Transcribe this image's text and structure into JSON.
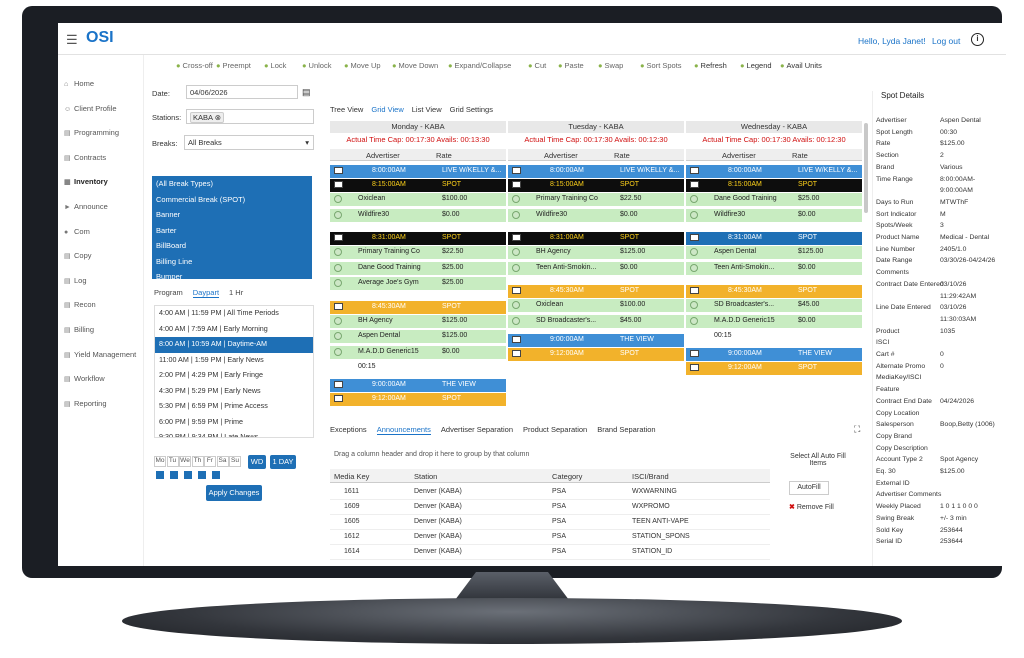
{
  "app": {
    "logo": "OSI",
    "hello": "Hello, Lyda Janet!",
    "logout": "Log out",
    "info": "i"
  },
  "sidebar": [
    "Home",
    "Client Profile",
    "Programming",
    "Contracts",
    "Inventory",
    "Announce",
    "Com",
    "Copy",
    "Log",
    "Recon",
    "Billing",
    "Yield Management",
    "Workflow",
    "Reporting"
  ],
  "toolbar": [
    "Cross-off",
    "Preempt",
    "Lock",
    "Unlock",
    "Move Up",
    "Move Down",
    "Expand/Collapse",
    "Cut",
    "Paste",
    "Swap",
    "Sort Spots",
    "Refresh",
    "Legend",
    "Avail Units"
  ],
  "filters": {
    "date_label": "Date:",
    "date": "04/06/2026",
    "stations_label": "Stations:",
    "station": "KABA",
    "breaks_label": "Breaks:",
    "breaks": "All Breaks"
  },
  "break_types": [
    "(All Break Types)",
    "Commercial Break (SPOT)",
    "Banner",
    "Barter",
    "BillBoard",
    "Billing Line",
    "Bumper"
  ],
  "subtabs": [
    "Program",
    "Daypart",
    "1 Hr"
  ],
  "dayparts": [
    "4:00 AM | 11:59 PM | All Time Periods",
    "4:00 AM | 7:59 AM | Early Morning",
    "8:00 AM | 10:59 AM | Daytime-AM",
    "11:00 AM | 1:59 PM | Early News",
    "2:00 PM | 4:29 PM | Early Fringe",
    "4:30 PM | 5:29 PM | Early News",
    "5:30 PM | 6:59 PM | Prime Access",
    "6:00 PM | 9:59 PM | Prime",
    "9:30 PM | 9:34 PM | Late News"
  ],
  "weekdays": [
    "Mo",
    "Tu",
    "We",
    "Th",
    "Fr",
    "Sa",
    "Su"
  ],
  "buttons": {
    "wd": "WD",
    "oneday": "1 DAY",
    "apply": "Apply Changes",
    "autofill": "AutoFill",
    "removefill": "Remove Fill",
    "select_all": "Select All Auto Fill Items"
  },
  "gridtabs": [
    "Tree View",
    "Grid View",
    "List View",
    "Grid Settings"
  ],
  "grid_headers": {
    "advertiser": "Advertiser",
    "rate": "Rate"
  },
  "days": [
    {
      "title": "Monday - KABA",
      "cap": "Actual Time Cap: 00:17:30 Avails: 00:13:30"
    },
    {
      "title": "Tuesday - KABA",
      "cap": "Actual Time Cap: 00:17:30 Avails: 00:12:30"
    },
    {
      "title": "Wednesday - KABA",
      "cap": "Actual Time Cap: 00:17:30 Avails: 00:12:30"
    }
  ],
  "monday": [
    {
      "t": "blue",
      "a": "8:00:00AM",
      "b": "LIVE W/KELLY &..."
    },
    {
      "t": "black",
      "a": "8:15:00AM",
      "b": "SPOT"
    },
    {
      "t": "green",
      "a": "Oxiclean",
      "b": "$100.00"
    },
    {
      "t": "green",
      "a": "Wildfire30",
      "b": "$0.00"
    },
    {
      "t": "black",
      "a": "8:31:00AM",
      "b": "SPOT"
    },
    {
      "t": "green",
      "a": "Primary Training Co",
      "b": "$22.50"
    },
    {
      "t": "green",
      "a": "Dane Good Training",
      "b": "$25.00"
    },
    {
      "t": "green",
      "a": "Average Joe's Gym",
      "b": "$25.00"
    },
    {
      "t": "orange",
      "a": "8:45:30AM",
      "b": "SPOT"
    },
    {
      "t": "green",
      "a": "BH Agency",
      "b": "$125.00"
    },
    {
      "t": "green",
      "a": "Aspen Dental",
      "b": "$125.00"
    },
    {
      "t": "green",
      "a": "M.A.D.D Generic15",
      "b": "$0.00"
    },
    {
      "t": "white",
      "a": "00:15",
      "b": ""
    },
    {
      "t": "blue",
      "a": "9:00:00AM",
      "b": "THE VIEW"
    },
    {
      "t": "orange",
      "a": "9:12:00AM",
      "b": "SPOT"
    }
  ],
  "tuesday": [
    {
      "t": "blue",
      "a": "8:00:00AM",
      "b": "LIVE W/KELLY &..."
    },
    {
      "t": "black",
      "a": "8:15:00AM",
      "b": "SPOT"
    },
    {
      "t": "green",
      "a": "Primary Training Co",
      "b": "$22.50"
    },
    {
      "t": "green",
      "a": "Wildfire30",
      "b": "$0.00"
    },
    {
      "t": "black",
      "a": "8:31:00AM",
      "b": "SPOT"
    },
    {
      "t": "green",
      "a": "BH Agency",
      "b": "$125.00"
    },
    {
      "t": "green",
      "a": "Teen Anti-Smokin...",
      "b": "$0.00"
    },
    {
      "t": "orange",
      "a": "8:45:30AM",
      "b": "SPOT"
    },
    {
      "t": "green",
      "a": "Oxiclean",
      "b": "$100.00"
    },
    {
      "t": "green",
      "a": "SD Broadcaster's...",
      "b": "$45.00"
    },
    {
      "t": "blue",
      "a": "9:00:00AM",
      "b": "THE VIEW"
    },
    {
      "t": "orange",
      "a": "9:12:00AM",
      "b": "SPOT"
    }
  ],
  "wednesday": [
    {
      "t": "blue",
      "a": "8:00:00AM",
      "b": "LIVE W/KELLY &..."
    },
    {
      "t": "black",
      "a": "8:15:00AM",
      "b": "SPOT"
    },
    {
      "t": "green",
      "a": "Dane Good Training",
      "b": "$25.00"
    },
    {
      "t": "green",
      "a": "Wildfire30",
      "b": "$0.00"
    },
    {
      "t": "navy",
      "a": "8:31:00AM",
      "b": "SPOT"
    },
    {
      "t": "green",
      "a": "Aspen Dental",
      "b": "$125.00"
    },
    {
      "t": "green",
      "a": "Teen Anti-Smokin...",
      "b": "$0.00"
    },
    {
      "t": "orange",
      "a": "8:45:30AM",
      "b": "SPOT"
    },
    {
      "t": "green",
      "a": "SD Broadcaster's...",
      "b": "$45.00"
    },
    {
      "t": "green",
      "a": "M.A.D.D Generic15",
      "b": "$0.00"
    },
    {
      "t": "white",
      "a": "00:15",
      "b": ""
    },
    {
      "t": "blue",
      "a": "9:00:00AM",
      "b": "THE VIEW"
    },
    {
      "t": "orange",
      "a": "9:12:00AM",
      "b": "SPOT"
    }
  ],
  "bottomtabs": [
    "Exceptions",
    "Announcements",
    "Advertiser Separation",
    "Product Separation",
    "Brand Separation"
  ],
  "drop_text": "Drag a column header and drop it here to group by that column",
  "media_headers": [
    "Media Key",
    "Station",
    "Category",
    "ISCI/Brand"
  ],
  "media_rows": [
    [
      "1611",
      "Denver (KABA)",
      "PSA",
      "WXWARNING"
    ],
    [
      "1609",
      "Denver (KABA)",
      "PSA",
      "WXPROMO"
    ],
    [
      "1605",
      "Denver (KABA)",
      "PSA",
      "TEEN ANTI-VAPE"
    ],
    [
      "1612",
      "Denver (KABA)",
      "PSA",
      "STATION_SPONS"
    ],
    [
      "1614",
      "Denver (KABA)",
      "PSA",
      "STATION_ID"
    ]
  ],
  "spot_details_title": "Spot Details",
  "spot_details": [
    [
      "Advertiser",
      "Aspen Dental"
    ],
    [
      "Spot Length",
      "00:30"
    ],
    [
      "Rate",
      "$125.00"
    ],
    [
      "Section",
      "2"
    ],
    [
      "Brand",
      "Various"
    ],
    [
      "Time Range",
      "8:00:00AM-"
    ],
    [
      "",
      "9:00:00AM"
    ],
    [
      "Days to Run",
      "MTWThF"
    ],
    [
      "Sort Indicator",
      "M"
    ],
    [
      "Spots/Week",
      "3"
    ],
    [
      "Product Name",
      "Medical - Dental"
    ],
    [
      "Line Number",
      "2405/1.0"
    ],
    [
      "Date Range",
      "03/30/26-04/24/26"
    ],
    [
      "Comments",
      ""
    ],
    [
      "Contract Date Entered",
      "03/10/26"
    ],
    [
      "",
      "11:29:42AM"
    ],
    [
      "Line Date Entered",
      "03/10/26"
    ],
    [
      "",
      "11:30:03AM"
    ],
    [
      "Product",
      "1035"
    ],
    [
      "ISCI",
      ""
    ],
    [
      "Cart #",
      "0"
    ],
    [
      "Alternate Promo",
      "0"
    ],
    [
      "MediaKey/ISCI",
      ""
    ],
    [
      "Feature",
      ""
    ],
    [
      "Contract End Date",
      "04/24/2026"
    ],
    [
      "Copy Location",
      ""
    ],
    [
      "Salesperson",
      "Boop,Betty (1006)"
    ],
    [
      "Copy Brand",
      ""
    ],
    [
      "Copy Description",
      ""
    ],
    [
      "Account Type 2",
      "Spot Agency"
    ],
    [
      "Eq. 30",
      "$125.00"
    ],
    [
      "External ID",
      ""
    ],
    [
      "Advertiser Comments",
      ""
    ],
    [
      "Weekly Placed",
      "1 0 1 1 0 0 0"
    ],
    [
      "Swing Break",
      "+/- 3 min"
    ],
    [
      "Sold Key",
      "253644"
    ],
    [
      "Serial ID",
      "253644"
    ]
  ]
}
